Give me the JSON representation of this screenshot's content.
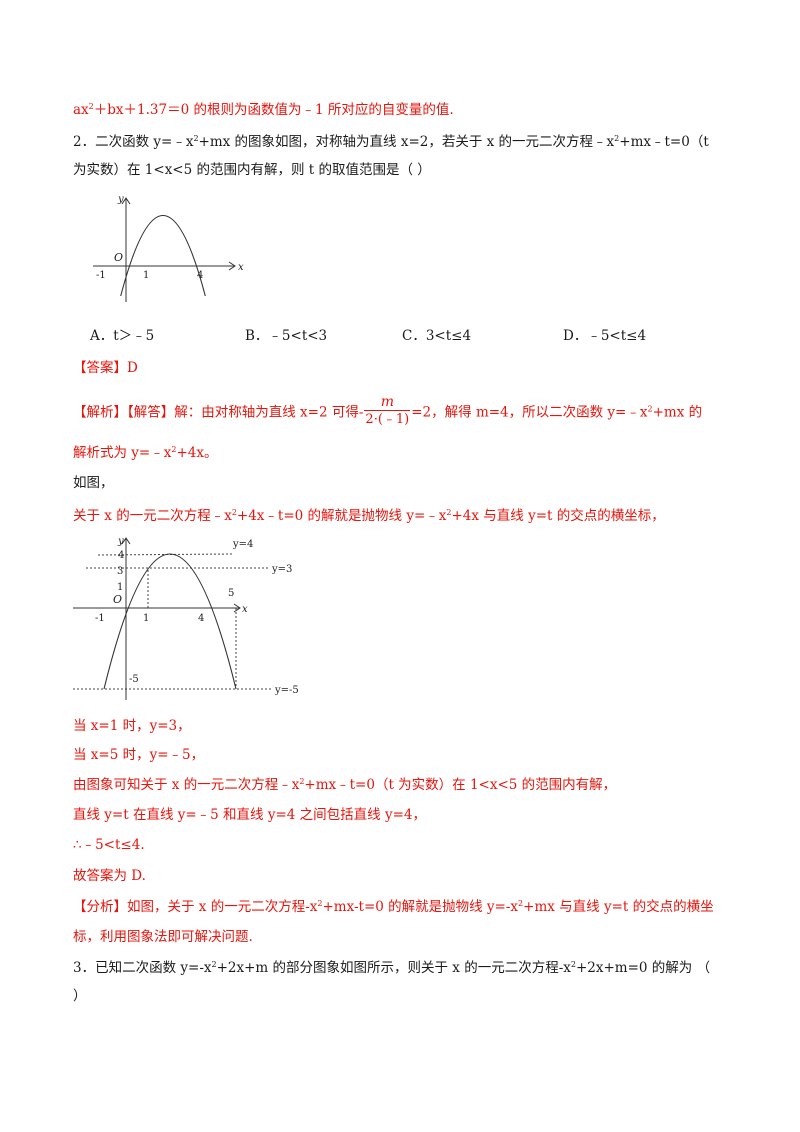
{
  "top_line": {
    "expr": "ax",
    "exp": "2",
    "rest": "＋bx＋1.37＝0 的根则为函数值为﹣1 所对应的自变量的值."
  },
  "q2": {
    "l1_a": "2．二次函数 y=﹣x",
    "l1_e1": "2",
    "l1_b": "+mx 的图象如图，对称轴为直线 x=2，若关于 x 的一元二次方程﹣x",
    "l1_e2": "2",
    "l1_c": "+mx﹣t=0（t",
    "l2": "为实数）在 1<x<5 的范围内有解，则 t 的取值范围是（        ）"
  },
  "graph1": {
    "y": "y",
    "x": "x",
    "o": "O",
    "m1": "-1",
    "one": "1",
    "four": "4"
  },
  "options": [
    {
      "text": "A．t＞﹣5"
    },
    {
      "text": "B．﹣5<t<3"
    },
    {
      "text": "C．3<t≤4"
    },
    {
      "text": "D．﹣5<t≤4"
    }
  ],
  "answer": "【答案】D",
  "analysis": {
    "a1": "【解析】【解答】解：由对称轴为直线 x=2 可得-",
    "frac_num": "m",
    "frac_den": "2·(﹣1)",
    "a2": "=2，解得 m=4，所以二次函数 y=﹣x",
    "a2_e": "2",
    "a3": "+mx 的",
    "b1": "解析式为 y=﹣x",
    "b1_e": "2",
    "b2": "+4x。",
    "c": "如图，",
    "d1": "关于 x 的一元二次方程﹣x",
    "d1_e": "2",
    "d2": "+4x﹣t=0 的解就是抛物线 y=﹣x",
    "d2_e": "2",
    "d3": "+4x 与直线 y=t 的交点的横坐标，"
  },
  "graph2": {
    "y": "y",
    "x": "x",
    "o": "O",
    "m1": "-1",
    "one_axis": "1",
    "four_axis": "4",
    "four_y": "4",
    "three_y": "3",
    "one_y": "1",
    "five": "5",
    "m5": "-5",
    "line4": "y=4",
    "line3": "y=3",
    "linem5": "y=-5"
  },
  "steps": {
    "s1": "当 x=1 时，y=3，",
    "s2": "当 x=5 时，y=﹣5，",
    "s3a": "由图象可知关于 x 的一元二次方程﹣x",
    "s3e": "2",
    "s3b": "+mx﹣t=0（t 为实数）在 1<x<5 的范围内有解，",
    "s4": "直线 y=t 在直线 y=﹣5 和直线 y=4 之间包括直线 y=4，",
    "s5": "∴﹣5<t≤4.",
    "s6": "故答案为 D."
  },
  "fenxi": {
    "f1a": "【分析】如图，关于 x 的一元二次方程-x",
    "f1e1": "2",
    "f1b": "+mx-t=0 的解就是抛物线 y=-x",
    "f1e2": "2",
    "f1c": "+mx 与直线 y=t 的交点的横坐",
    "f2": "标，利用图象法即可解决问题."
  },
  "q3": {
    "l1a": "3．已知二次函数 y=-x",
    "l1e1": "2",
    "l1b": "+2x+m 的部分图象如图所示，则关于 x 的一元二次方程-x",
    "l1e2": "2",
    "l1c": "+2x+m=0 的解为  （",
    "l2": "）"
  }
}
